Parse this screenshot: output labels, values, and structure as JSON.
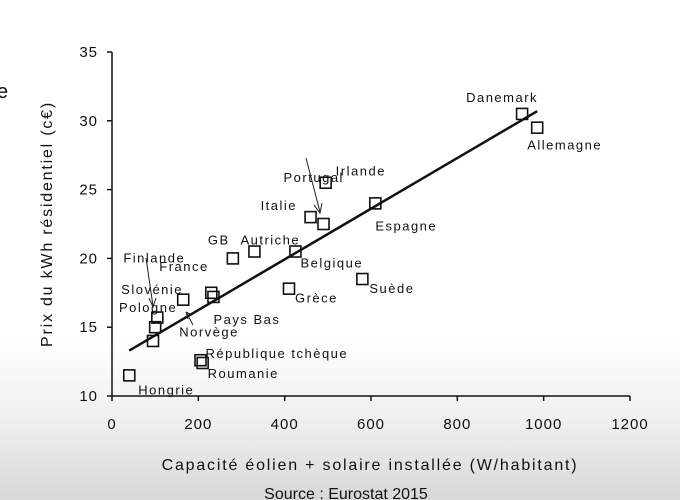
{
  "edge_fragment": "e",
  "source": "Source : Eurostat 2015",
  "chart_data": {
    "type": "scatter",
    "title": "",
    "xlabel": "Capacité éolien + solaire installée (W/habitant)",
    "ylabel": "Prix du kWh résidentiel (c€)",
    "xlim": [
      0,
      1200
    ],
    "ylim": [
      10,
      35
    ],
    "xticks": [
      0,
      200,
      400,
      600,
      800,
      1000,
      1200
    ],
    "yticks": [
      10,
      15,
      20,
      25,
      30,
      35
    ],
    "grid": false,
    "marker": "open-square",
    "points": [
      {
        "label": "Danemark",
        "x": 950,
        "y": 30.5
      },
      {
        "label": "Allemagne",
        "x": 985,
        "y": 29.5
      },
      {
        "label": "Portugal",
        "x": 490,
        "y": 22.5
      },
      {
        "label": "Irlande",
        "x": 495,
        "y": 25.5
      },
      {
        "label": "Espagne",
        "x": 610,
        "y": 24.0
      },
      {
        "label": "Italie",
        "x": 460,
        "y": 23.0
      },
      {
        "label": "Autriche",
        "x": 330,
        "y": 20.5
      },
      {
        "label": "GB",
        "x": 280,
        "y": 20.0
      },
      {
        "label": "Belgique",
        "x": 425,
        "y": 20.5
      },
      {
        "label": "Suède",
        "x": 580,
        "y": 18.5
      },
      {
        "label": "Grèce",
        "x": 410,
        "y": 17.8
      },
      {
        "label": "France",
        "x": 230,
        "y": 17.5
      },
      {
        "label": "Pays Bas",
        "x": 235,
        "y": 17.2
      },
      {
        "label": "Norvège",
        "x": 165,
        "y": 17.0
      },
      {
        "label": "Finlande",
        "x": 105,
        "y": 15.7
      },
      {
        "label": "Slovénie",
        "x": 100,
        "y": 15.0
      },
      {
        "label": "Pologne",
        "x": 95,
        "y": 14.0
      },
      {
        "label": "République tchèque",
        "x": 205,
        "y": 12.6
      },
      {
        "label": "Roumanie",
        "x": 210,
        "y": 12.4
      },
      {
        "label": "Hongrie",
        "x": 40,
        "y": 11.5
      }
    ],
    "trendline": {
      "x": [
        40,
        985
      ],
      "y": [
        13.3,
        30.7
      ]
    }
  }
}
